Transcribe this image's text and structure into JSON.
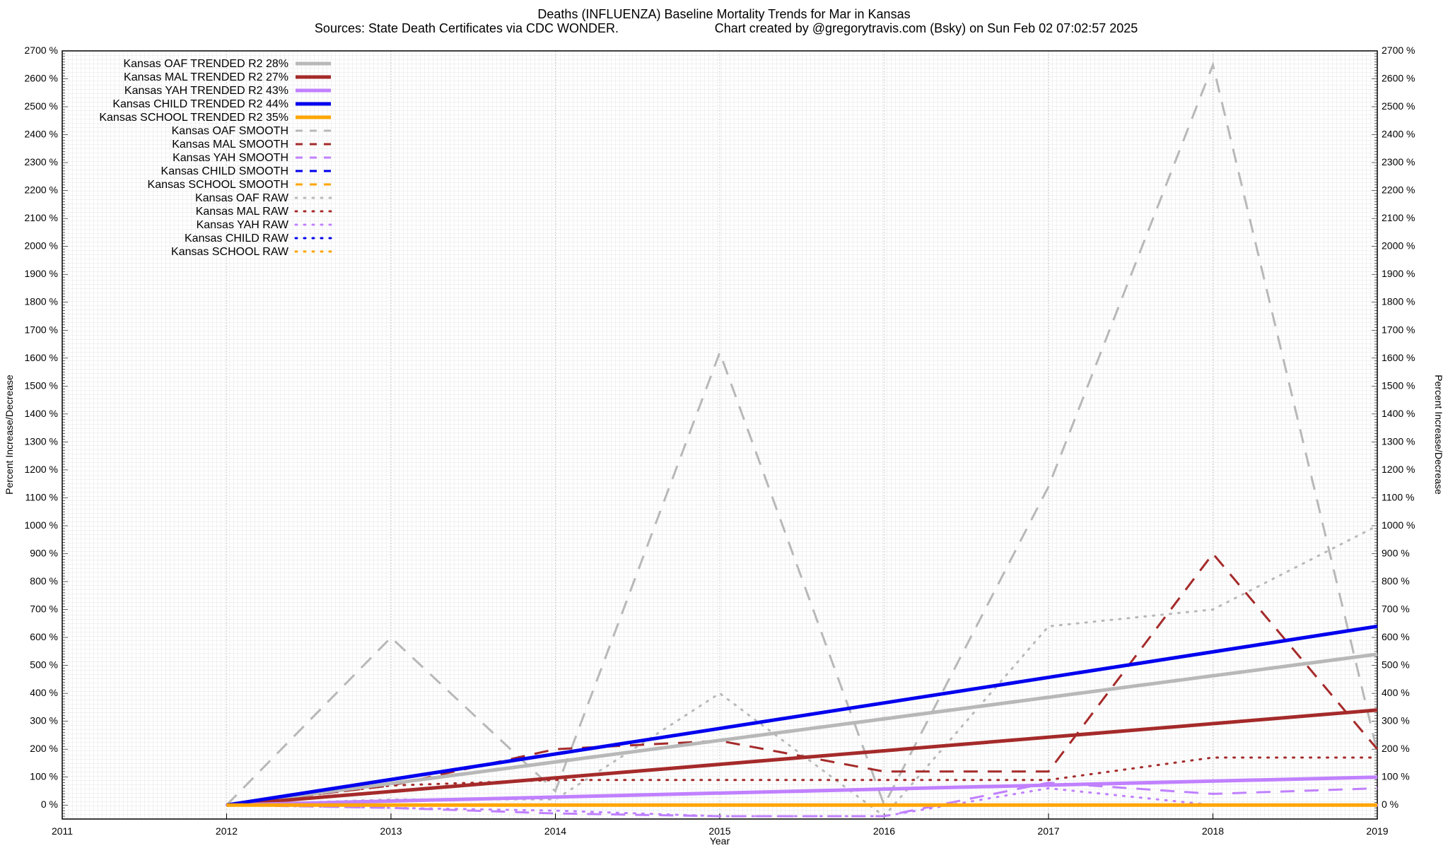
{
  "chart_data": {
    "type": "line",
    "title": "Deaths (INFLUENZA)  Baseline Mortality Trends for Mar in Kansas",
    "subtitle_left": "Sources: State Death Certificates via CDC WONDER.",
    "subtitle_right": "Chart created by @gregorytravis.com (Bsky) on Sun Feb 02 07:02:57 2025",
    "xlabel": "Year",
    "ylabel": "Percent Increase/Decrease",
    "xlim": [
      2011,
      2019
    ],
    "x_ticks": [
      "2011",
      "2012",
      "2013",
      "2014",
      "2015",
      "2016",
      "2017",
      "2018",
      "2019"
    ],
    "ylim": [
      -50,
      2700
    ],
    "grid": true,
    "legend_position": "top-left",
    "series": [
      {
        "name": "Kansas OAF TRENDED R2  28%",
        "style": "trend",
        "color": "#b8b8b8",
        "x": [
          2012,
          2019
        ],
        "y": [
          0,
          540
        ]
      },
      {
        "name": "Kansas MAL TRENDED R2  27%",
        "style": "trend",
        "color": "#a52a2a",
        "x": [
          2012,
          2019
        ],
        "y": [
          0,
          340
        ]
      },
      {
        "name": "Kansas YAH TRENDED R2  43%",
        "style": "trend",
        "color": "#c080ff",
        "x": [
          2012,
          2019
        ],
        "y": [
          0,
          100
        ]
      },
      {
        "name": "Kansas CHILD TRENDED R2  44%",
        "style": "trend",
        "color": "#0000ee",
        "x": [
          2012,
          2019
        ],
        "y": [
          0,
          640
        ]
      },
      {
        "name": "Kansas SCHOOL TRENDED R2  35%",
        "style": "trend",
        "color": "#ffa500",
        "x": [
          2012,
          2019
        ],
        "y": [
          0,
          0
        ]
      },
      {
        "name": "Kansas OAF SMOOTH",
        "style": "smooth",
        "color": "#b8b8b8",
        "x": [
          2012,
          2013,
          2014,
          2015,
          2016,
          2017,
          2018,
          2019
        ],
        "y": [
          0,
          600,
          50,
          1620,
          0,
          1140,
          2650,
          190
        ]
      },
      {
        "name": "Kansas MAL SMOOTH",
        "style": "smooth",
        "color": "#a52a2a",
        "x": [
          2012,
          2013,
          2014,
          2015,
          2016,
          2017,
          2018,
          2019
        ],
        "y": [
          0,
          70,
          200,
          230,
          120,
          120,
          900,
          200
        ]
      },
      {
        "name": "Kansas YAH SMOOTH",
        "style": "smooth",
        "color": "#c080ff",
        "x": [
          2012,
          2013,
          2014,
          2015,
          2016,
          2017,
          2018,
          2019
        ],
        "y": [
          0,
          -10,
          -30,
          -40,
          -40,
          80,
          40,
          60
        ]
      },
      {
        "name": "Kansas CHILD SMOOTH",
        "style": "smooth",
        "color": "#0000ee",
        "x": [],
        "y": []
      },
      {
        "name": "Kansas SCHOOL SMOOTH",
        "style": "smooth",
        "color": "#ffa500",
        "x": [],
        "y": []
      },
      {
        "name": "Kansas OAF RAW",
        "style": "raw",
        "color": "#b8b8b8",
        "x": [
          2012,
          2013,
          2014,
          2015,
          2016,
          2017,
          2018,
          2019
        ],
        "y": [
          0,
          20,
          20,
          400,
          -40,
          640,
          700,
          1000
        ]
      },
      {
        "name": "Kansas MAL RAW",
        "style": "raw",
        "color": "#a52a2a",
        "x": [
          2012,
          2013,
          2014,
          2015,
          2016,
          2017,
          2018,
          2019
        ],
        "y": [
          0,
          70,
          90,
          90,
          90,
          90,
          170,
          170
        ]
      },
      {
        "name": "Kansas YAH RAW",
        "style": "raw",
        "color": "#c080ff",
        "x": [
          2012,
          2013,
          2014,
          2015,
          2016,
          2017,
          2018,
          2019
        ],
        "y": [
          0,
          -10,
          -20,
          -40,
          -40,
          60,
          0,
          0
        ]
      },
      {
        "name": "Kansas CHILD RAW",
        "style": "raw",
        "color": "#0000ee",
        "x": [],
        "y": []
      },
      {
        "name": "Kansas SCHOOL RAW",
        "style": "raw",
        "color": "#ffa500",
        "x": [],
        "y": []
      }
    ]
  }
}
